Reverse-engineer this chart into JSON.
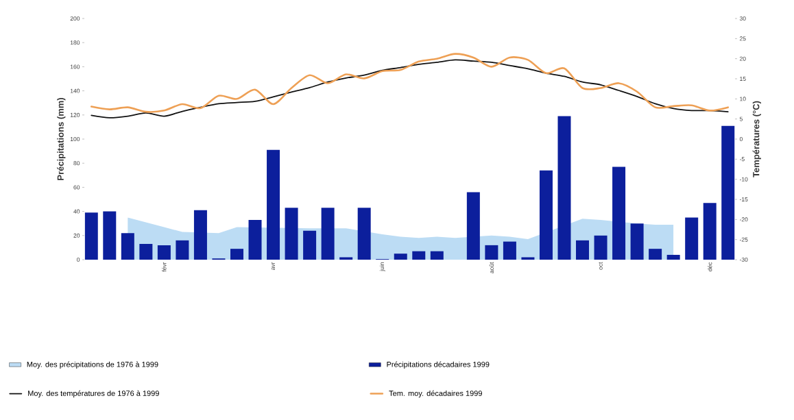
{
  "chart_data": {
    "type": "bar",
    "categories": [
      null,
      null,
      null,
      null,
      "févr",
      null,
      null,
      null,
      null,
      null,
      "avr",
      null,
      null,
      null,
      null,
      null,
      "juin",
      null,
      null,
      null,
      null,
      null,
      "août",
      null,
      null,
      null,
      null,
      null,
      "oct",
      null,
      null,
      null,
      null,
      null,
      "déc",
      null
    ],
    "series": [
      {
        "name": "Moy. des précipitations de 1976 à 1999",
        "type": "area",
        "color": "#bcdcf4",
        "values": [
          null,
          null,
          35,
          31,
          27,
          23,
          null,
          22,
          27,
          null,
          null,
          null,
          26,
          null,
          26,
          null,
          21,
          19,
          18,
          19,
          18,
          null,
          20,
          19,
          17,
          null,
          null,
          34,
          33,
          null,
          30,
          29,
          29,
          null,
          null,
          null
        ]
      },
      {
        "name": "Précipitations décadaires 1999",
        "color": "#0c1f9c",
        "values": [
          39,
          40,
          22,
          13,
          12,
          16,
          41,
          1,
          9,
          33,
          91,
          43,
          24,
          43,
          2,
          43,
          0.5,
          5,
          7,
          7,
          null,
          56,
          12,
          15,
          2,
          74,
          119,
          16,
          20,
          77,
          30,
          9,
          4,
          35,
          47,
          111
        ]
      },
      {
        "name": "Moy. des températures de 1976 à 1999",
        "type": "line",
        "axis": "y2",
        "color": "#111111",
        "values": [
          5.9,
          5.3,
          5.7,
          6.5,
          5.7,
          6.9,
          7.9,
          8.8,
          9.1,
          9.4,
          10.5,
          11.7,
          12.8,
          14.2,
          15.2,
          15.9,
          17.1,
          17.8,
          18.6,
          19.1,
          19.7,
          19.4,
          19.1,
          18.3,
          17.5,
          16.4,
          15.6,
          14.2,
          13.5,
          12.1,
          10.6,
          8.8,
          7.6,
          7.1,
          7.1,
          6.8
        ]
      },
      {
        "name": "Tem. moy. décadaires 1999",
        "type": "line",
        "axis": "y2",
        "color": "#eea055",
        "values": [
          8.1,
          7.4,
          7.9,
          6.8,
          7.1,
          8.7,
          7.7,
          10.8,
          10,
          12.3,
          8.7,
          12.7,
          15.9,
          13.9,
          16.1,
          15.1,
          16.9,
          17.2,
          19.3,
          20,
          21.2,
          20.3,
          18,
          20.3,
          19.7,
          16.4,
          17.6,
          12.7,
          12.7,
          13.9,
          11.8,
          7.9,
          8.2,
          8.4,
          7.1,
          7.9
        ]
      }
    ],
    "ylabel": "Précipitations (mm)",
    "y2label": "Températures (°C)",
    "ylim": [
      0,
      200
    ],
    "yticks": [
      0,
      20,
      40,
      60,
      80,
      100,
      120,
      140,
      160,
      180,
      200
    ],
    "y2lim": [
      -30,
      30
    ],
    "y2ticks": [
      -30,
      -25,
      -20,
      -15,
      -10,
      -5,
      0,
      5,
      10,
      15,
      20,
      25,
      30
    ],
    "legend": "bottom"
  }
}
